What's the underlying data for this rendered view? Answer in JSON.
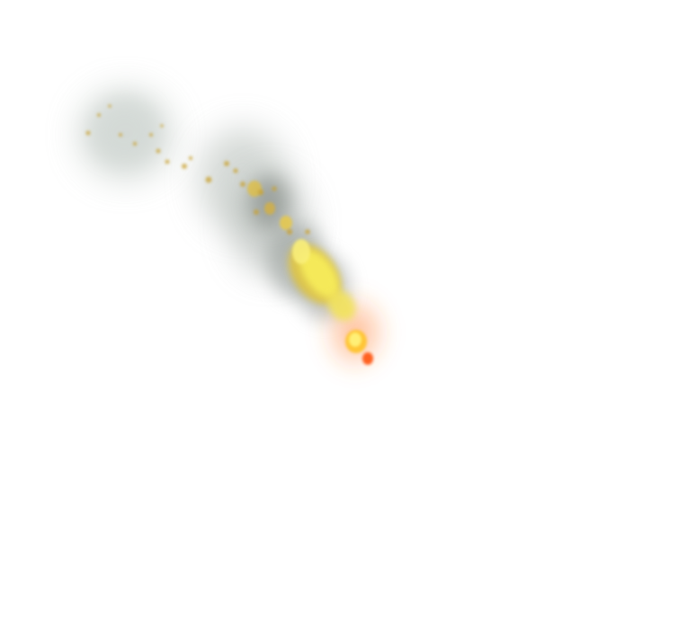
{
  "scene": {
    "background": "#ffffff",
    "subject": "fire-trail-effect",
    "elements": [
      {
        "name": "smoke-puff",
        "color": "#c9d0cc"
      },
      {
        "name": "smoke-trail",
        "color": "#8d938f"
      },
      {
        "name": "flame-core",
        "color": "#f7ec5a"
      },
      {
        "name": "flame-tip",
        "color": "#ff6a1a"
      },
      {
        "name": "spark-particles",
        "color": "#c9a233"
      }
    ]
  }
}
